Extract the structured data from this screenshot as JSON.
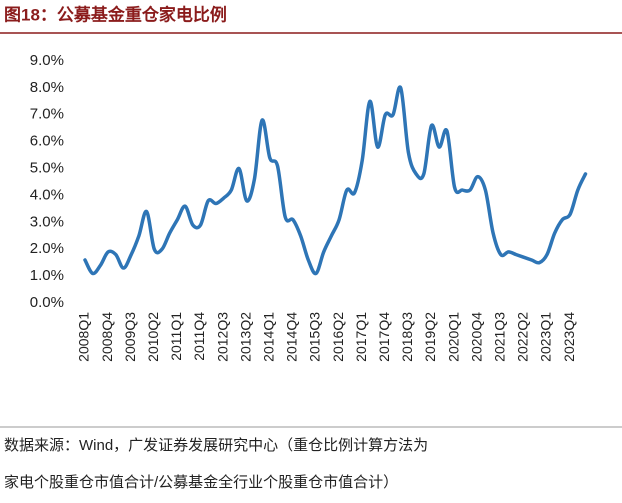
{
  "chart_data": {
    "type": "line",
    "title": "图18：公募基金重仓家电比例",
    "categories": [
      "2008Q1",
      null,
      null,
      "2008Q4",
      null,
      null,
      "2009Q3",
      null,
      null,
      "2010Q2",
      null,
      null,
      "2011Q1",
      null,
      null,
      "2011Q4",
      null,
      null,
      "2012Q3",
      null,
      null,
      "2013Q2",
      null,
      null,
      "2014Q1",
      null,
      null,
      "2014Q4",
      null,
      null,
      "2015Q3",
      null,
      null,
      "2016Q2",
      null,
      null,
      "2017Q1",
      null,
      null,
      "2017Q4",
      null,
      null,
      "2018Q3",
      null,
      null,
      "2019Q2",
      null,
      null,
      "2020Q1",
      null,
      null,
      "2020Q4",
      null,
      null,
      "2021Q3",
      null,
      null,
      "2022Q2",
      null,
      null,
      "2023Q1",
      null,
      null,
      "2023Q4",
      null,
      null
    ],
    "values": [
      1.6,
      1.1,
      1.4,
      1.9,
      1.8,
      1.3,
      1.8,
      2.5,
      3.4,
      2.0,
      2.0,
      2.6,
      3.1,
      3.6,
      2.9,
      2.9,
      3.8,
      3.7,
      3.9,
      4.2,
      5.0,
      3.8,
      4.6,
      6.8,
      5.4,
      5.1,
      3.2,
      3.1,
      2.5,
      1.6,
      1.1,
      1.9,
      2.5,
      3.1,
      4.2,
      4.1,
      5.3,
      7.5,
      5.8,
      7.0,
      7.0,
      8.0,
      5.6,
      4.8,
      4.8,
      6.6,
      5.8,
      6.4,
      4.3,
      4.2,
      4.2,
      4.7,
      4.2,
      2.6,
      1.8,
      1.9,
      1.8,
      1.7,
      1.6,
      1.5,
      1.8,
      2.6,
      3.1,
      3.3,
      4.2,
      4.8
    ],
    "color": "#2e75b6",
    "ylim": [
      0,
      9
    ],
    "yticks": [
      {
        "value": 0,
        "label": "0.0%"
      },
      {
        "value": 1,
        "label": "1.0%"
      },
      {
        "value": 2,
        "label": "2.0%"
      },
      {
        "value": 3,
        "label": "3.0%"
      },
      {
        "value": 4,
        "label": "4.0%"
      },
      {
        "value": 5,
        "label": "5.0%"
      },
      {
        "value": 6,
        "label": "6.0%"
      },
      {
        "value": 7,
        "label": "7.0%"
      },
      {
        "value": 8,
        "label": "8.0%"
      },
      {
        "value": 9,
        "label": "9.0%"
      }
    ],
    "source": [
      "数据来源：Wind，广发证券发展研究中心（重仓比例计算方法为",
      "家电个股重仓市值合计/公募基金全行业个股重仓市值合计）"
    ]
  }
}
